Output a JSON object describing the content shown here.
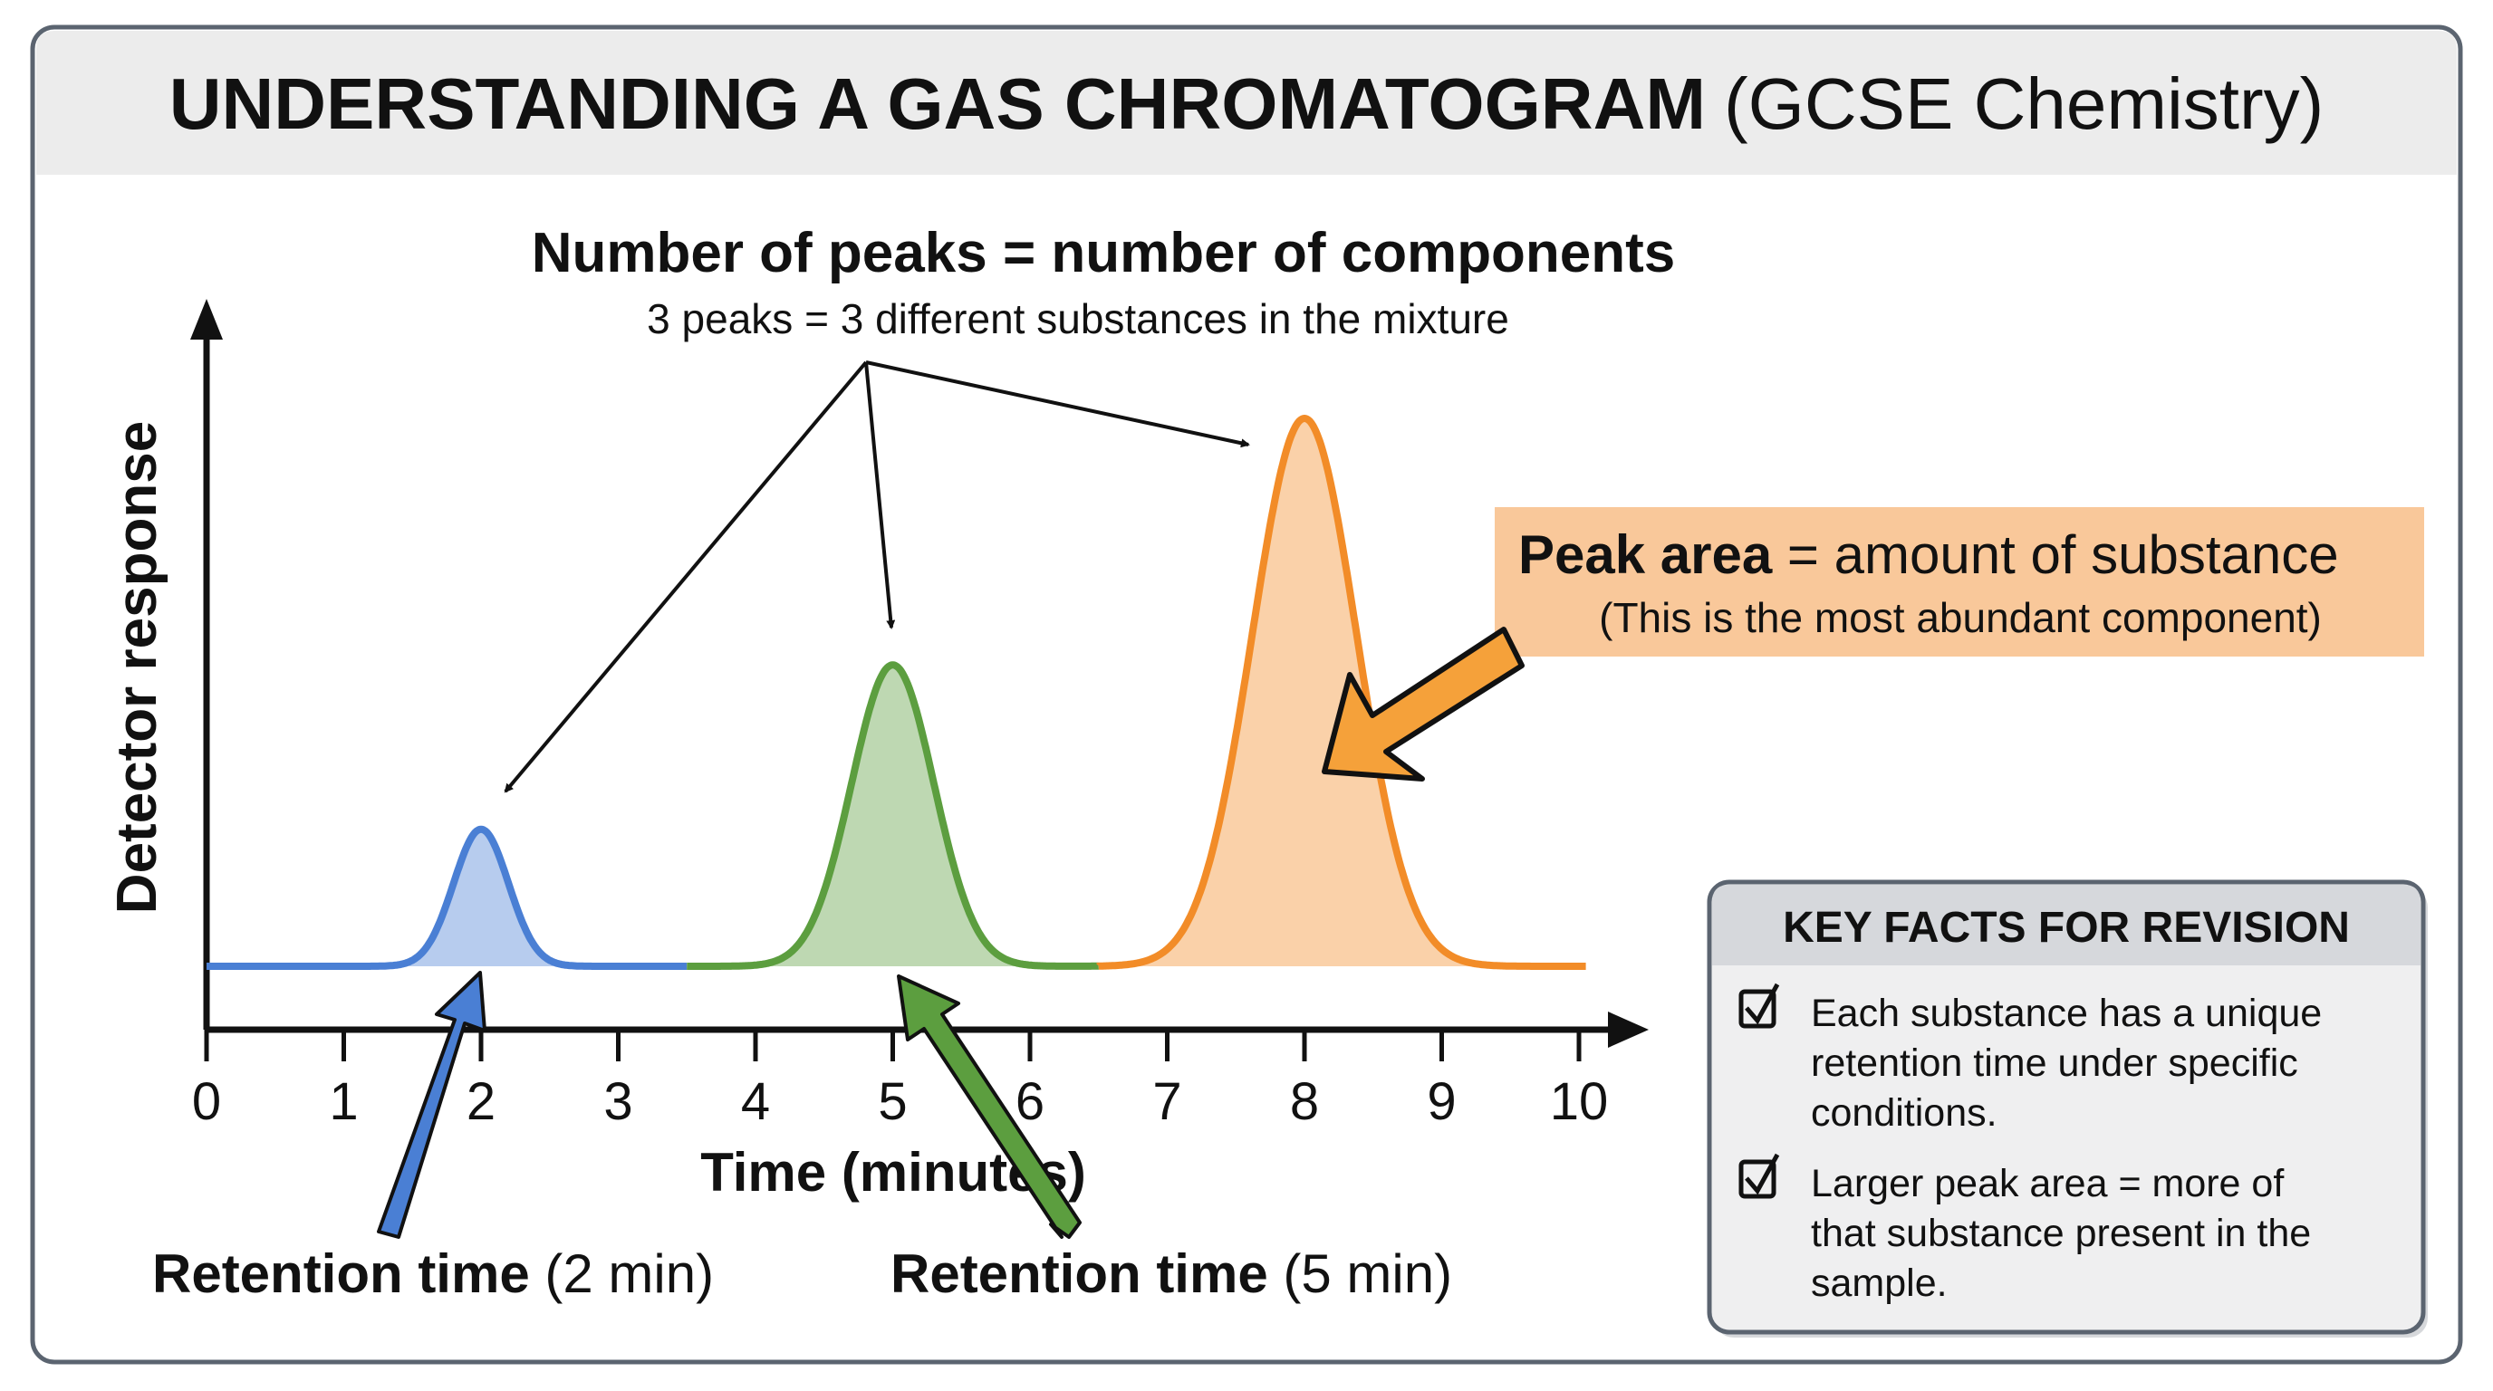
{
  "title": {
    "bold": "UNDERSTANDING A GAS CHROMATOGRAM",
    "regular": "(GCSE Chemistry)"
  },
  "peaks_note": {
    "heading": "Number of peaks = number of components",
    "sub": "3 peaks = 3 different substances in the mixture"
  },
  "peak_area_note": {
    "bold": "Peak area",
    "rest": " = amount of substance",
    "sub": "(This is the most abundant component)"
  },
  "retention_labels": [
    {
      "bold": "Retention time",
      "rest": " (2 min)"
    },
    {
      "bold": "Retention time",
      "rest": " (5 min)"
    }
  ],
  "key_facts": {
    "heading": "KEY FACTS FOR REVISION",
    "items": [
      {
        "lines": [
          "Each substance has a unique",
          "retention time under specific",
          "conditions."
        ]
      },
      {
        "lines": [
          "Larger peak area = more of",
          "that substance present in the",
          "sample."
        ]
      }
    ],
    "icon": "checkbox-checked-icon"
  },
  "colors": {
    "blue": "#4a7fd4",
    "green": "#5c9e3f",
    "orange": "#f28c28",
    "note_bg": "#f9c89a",
    "header_bg": "#ececec"
  },
  "chart_data": {
    "type": "line",
    "xlabel": "Time (minutes)",
    "ylabel": "Detector response",
    "xlim": [
      0,
      10
    ],
    "xticks": [
      "0",
      "1",
      "2",
      "3",
      "4",
      "5",
      "6",
      "7",
      "8",
      "9",
      "10"
    ],
    "yticks": [],
    "grid": false,
    "series": [
      {
        "retention_time": 2,
        "relative_height": 0.25,
        "width_sigma": 0.2,
        "color": "#4a7fd4"
      },
      {
        "retention_time": 5,
        "relative_height": 0.55,
        "width_sigma": 0.3,
        "color": "#5c9e3f"
      },
      {
        "retention_time": 8,
        "relative_height": 1.0,
        "width_sigma": 0.38,
        "color": "#f28c28"
      }
    ]
  }
}
